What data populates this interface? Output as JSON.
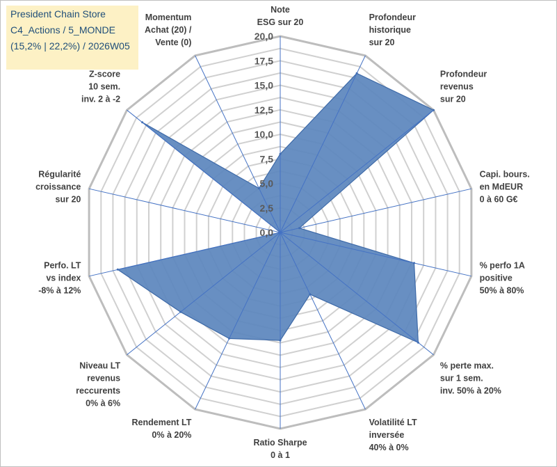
{
  "title_box": {
    "lines": [
      "President Chain Store",
      "C4_Actions / 5_MONDE",
      "(15,2% | 22,2%) / 2026W05"
    ]
  },
  "chart_data": {
    "type": "radar",
    "rmin": 0,
    "rmax": 20,
    "ticks": [
      "0,0",
      "2,5",
      "5,0",
      "7,5",
      "10,0",
      "12,5",
      "15,0",
      "17,5",
      "20,0"
    ],
    "grid": true,
    "legend": "none",
    "axes": [
      {
        "label": [
          "Note",
          "ESG sur 20"
        ]
      },
      {
        "label": [
          "Profondeur",
          "historique",
          "sur 20"
        ]
      },
      {
        "label": [
          "Profondeur",
          "revenus",
          "sur 20"
        ]
      },
      {
        "label": [
          "Capi. bours.",
          "en MdEUR",
          "0 à 60 G€"
        ]
      },
      {
        "label": [
          "% perfo 1A",
          "positive",
          "50% à 80%"
        ]
      },
      {
        "label": [
          "% perte max.",
          "sur 1 sem.",
          "inv. 50% à 20%"
        ]
      },
      {
        "label": [
          "Volatilité LT",
          "inversée",
          "40% à 0%"
        ]
      },
      {
        "label": [
          "Ratio Sharpe",
          "0 à 1"
        ]
      },
      {
        "label": [
          "Rendement LT",
          "0% à 20%"
        ]
      },
      {
        "label": [
          "Niveau LT",
          "revenus",
          "reccurents",
          "0% à 6%"
        ]
      },
      {
        "label": [
          "Perfo. LT",
          "vs index",
          "-8% à 12%"
        ]
      },
      {
        "label": [
          "Régularité",
          "croissance",
          "sur 20"
        ]
      },
      {
        "label": [
          "Z-score",
          "10 sem.",
          "inv. 2 à -2"
        ]
      },
      {
        "label": [
          "Momentum",
          "Achat (20) /",
          "Vente (0)"
        ]
      }
    ],
    "series": [
      {
        "values": [
          8,
          18,
          20,
          2,
          14,
          18,
          7,
          11,
          12,
          13,
          17,
          0,
          18,
          5
        ]
      }
    ],
    "colors": {
      "fill": "#5b86bd",
      "stroke": "#3e6aa8",
      "spoke": "#4472c4",
      "grid": "#d0d0d0",
      "outer": "#bdbdbd"
    }
  }
}
